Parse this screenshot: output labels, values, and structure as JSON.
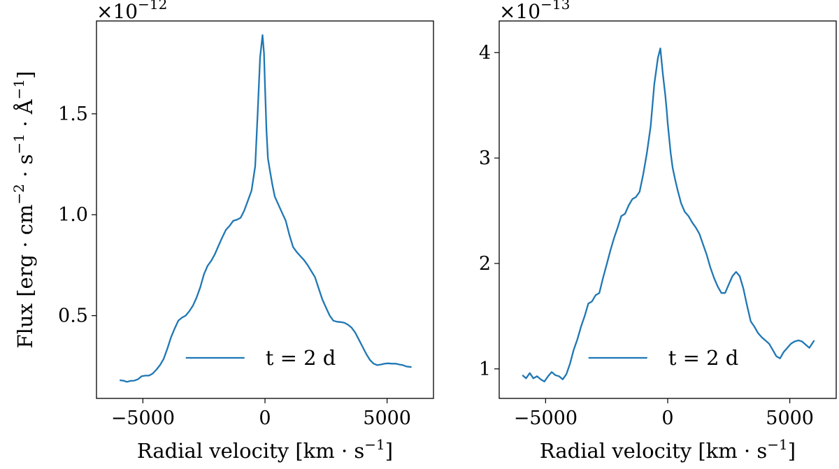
{
  "chart_data": [
    {
      "type": "line",
      "panel": "left",
      "xlabel": "Radial velocity",
      "xlabel_unit": "km · s",
      "xlabel_exp": "−1",
      "ylabel": "Flux",
      "ylabel_unit": "erg · cm",
      "ylabel_unit_exp1": "−2",
      "ylabel_unit_mid": " · s",
      "ylabel_unit_exp2": "−1",
      "ylabel_unit_tail": " · Å",
      "ylabel_unit_exp3": "−1",
      "sci_prefix": "×10",
      "sci_exponent": "−12",
      "xlim": [
        -6900,
        6900
      ],
      "ylim": [
        0.09,
        1.96
      ],
      "xticks": [
        -5000,
        0,
        5000
      ],
      "xtick_labels": [
        "−5000",
        "0",
        "5000"
      ],
      "yticks": [
        0.5,
        1.0,
        1.5
      ],
      "ytick_labels": [
        "0.5",
        "1.0",
        "1.5"
      ],
      "legend": "t = 2 d",
      "legend_position": "lower-right",
      "color": "#1f77b4",
      "series": [
        {
          "name": "t = 2 d",
          "x": [
            -5950,
            -5800,
            -5650,
            -5500,
            -5350,
            -5200,
            -5050,
            -4900,
            -4750,
            -4600,
            -4450,
            -4300,
            -4150,
            -4000,
            -3850,
            -3700,
            -3550,
            -3400,
            -3250,
            -3100,
            -2950,
            -2800,
            -2650,
            -2500,
            -2350,
            -2200,
            -2050,
            -1900,
            -1750,
            -1600,
            -1450,
            -1300,
            -1150,
            -1000,
            -850,
            -700,
            -550,
            -400,
            -300,
            -200,
            -100,
            -40,
            0,
            60,
            120,
            200,
            300,
            400,
            550,
            700,
            850,
            1000,
            1150,
            1300,
            1450,
            1600,
            1750,
            1900,
            2050,
            2200,
            2350,
            2500,
            2650,
            2800,
            2950,
            3100,
            3250,
            3400,
            3550,
            3700,
            3850,
            4000,
            4150,
            4300,
            4450,
            4600,
            4750,
            4900,
            5050,
            5200,
            5350,
            5500,
            5650,
            5800,
            6000
          ],
          "y": [
            0.18,
            0.178,
            0.172,
            0.177,
            0.178,
            0.185,
            0.2,
            0.203,
            0.203,
            0.213,
            0.232,
            0.255,
            0.286,
            0.336,
            0.392,
            0.436,
            0.475,
            0.49,
            0.5,
            0.522,
            0.55,
            0.59,
            0.64,
            0.705,
            0.747,
            0.772,
            0.805,
            0.847,
            0.888,
            0.925,
            0.945,
            0.97,
            0.975,
            0.985,
            1.02,
            1.07,
            1.12,
            1.24,
            1.5,
            1.78,
            1.89,
            1.8,
            1.64,
            1.42,
            1.28,
            1.22,
            1.15,
            1.09,
            1.05,
            1.01,
            0.97,
            0.9,
            0.84,
            0.815,
            0.795,
            0.775,
            0.75,
            0.72,
            0.69,
            0.635,
            0.58,
            0.54,
            0.5,
            0.475,
            0.47,
            0.468,
            0.465,
            0.455,
            0.44,
            0.415,
            0.38,
            0.345,
            0.31,
            0.28,
            0.262,
            0.255,
            0.258,
            0.262,
            0.264,
            0.262,
            0.262,
            0.258,
            0.255,
            0.248,
            0.245
          ]
        }
      ]
    },
    {
      "type": "line",
      "panel": "right",
      "xlabel": "Radial velocity",
      "xlabel_unit": "km · s",
      "xlabel_exp": "−1",
      "sci_prefix": "×10",
      "sci_exponent": "−13",
      "xlim": [
        -6900,
        6900
      ],
      "ylim": [
        0.72,
        4.3
      ],
      "xticks": [
        -5000,
        0,
        5000
      ],
      "xtick_labels": [
        "−5000",
        "0",
        "5000"
      ],
      "yticks": [
        1,
        2,
        3,
        4
      ],
      "ytick_labels": [
        "1",
        "2",
        "3",
        "4"
      ],
      "legend": "t = 2 d",
      "legend_position": "lower-right",
      "color": "#1f77b4",
      "series": [
        {
          "name": "t = 2 d",
          "x": [
            -5950,
            -5800,
            -5650,
            -5500,
            -5350,
            -5200,
            -5050,
            -4900,
            -4750,
            -4600,
            -4450,
            -4300,
            -4150,
            -4000,
            -3850,
            -3700,
            -3550,
            -3400,
            -3250,
            -3100,
            -2950,
            -2800,
            -2650,
            -2500,
            -2350,
            -2200,
            -2050,
            -1900,
            -1750,
            -1600,
            -1450,
            -1300,
            -1150,
            -1000,
            -850,
            -700,
            -550,
            -400,
            -300,
            -200,
            -100,
            -40,
            0,
            60,
            120,
            200,
            300,
            400,
            550,
            700,
            850,
            1000,
            1150,
            1300,
            1450,
            1600,
            1750,
            1900,
            2050,
            2200,
            2350,
            2500,
            2650,
            2800,
            2950,
            3100,
            3250,
            3400,
            3550,
            3700,
            3850,
            4000,
            4150,
            4300,
            4450,
            4600,
            4750,
            4900,
            5050,
            5200,
            5350,
            5500,
            5650,
            5800,
            6000
          ],
          "y": [
            0.94,
            0.91,
            0.96,
            0.91,
            0.93,
            0.9,
            0.88,
            0.93,
            0.97,
            0.94,
            0.93,
            0.9,
            0.95,
            1.05,
            1.18,
            1.28,
            1.4,
            1.5,
            1.62,
            1.64,
            1.7,
            1.72,
            1.86,
            1.99,
            2.12,
            2.24,
            2.34,
            2.45,
            2.47,
            2.55,
            2.61,
            2.63,
            2.68,
            2.85,
            3.05,
            3.3,
            3.7,
            3.95,
            4.04,
            3.8,
            3.6,
            3.45,
            3.33,
            3.19,
            3.05,
            2.91,
            2.8,
            2.7,
            2.57,
            2.49,
            2.45,
            2.39,
            2.34,
            2.28,
            2.18,
            2.08,
            1.96,
            1.86,
            1.78,
            1.72,
            1.72,
            1.8,
            1.88,
            1.92,
            1.88,
            1.76,
            1.6,
            1.45,
            1.4,
            1.34,
            1.3,
            1.27,
            1.24,
            1.18,
            1.12,
            1.1,
            1.16,
            1.2,
            1.24,
            1.26,
            1.27,
            1.26,
            1.23,
            1.2,
            1.27
          ]
        }
      ]
    }
  ]
}
